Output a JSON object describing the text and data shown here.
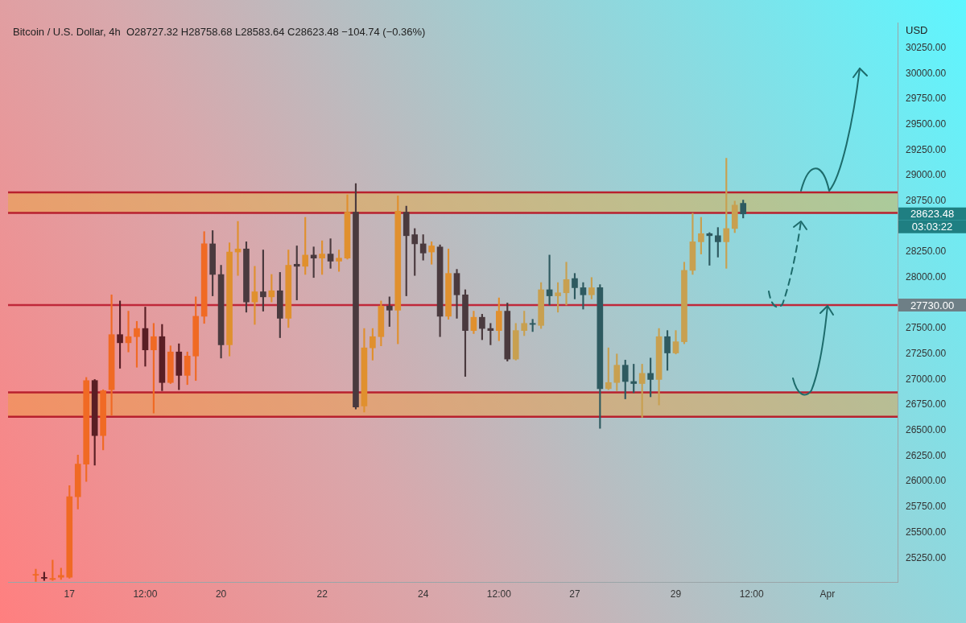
{
  "chart_data": {
    "type": "candlestick",
    "title": "Bitcoin / U.S. Dollar, 4h",
    "subtitle": "O28727.32 H28758.68 L28583.64 C28623.48 −104.74 (−0.36%)",
    "ylabel": "USD",
    "x": [
      "--03-16T08:00",
      "--03-16T12:00",
      "--03-16T16:00",
      "--03-16T20:00",
      "--03-17T00:00",
      "--03-17T04:00",
      "--03-17T08:00",
      "--03-17T12:00",
      "--03-17T16:00",
      "--03-17T20:00",
      "--03-18T00:00",
      "--03-18T04:00",
      "--03-18T08:00",
      "--03-18T12:00",
      "--03-18T16:00",
      "--03-18T20:00",
      "--03-19T00:00",
      "--03-19T04:00",
      "--03-19T08:00",
      "--03-19T12:00",
      "--03-19T16:00",
      "--03-19T20:00",
      "--03-20T00:00",
      "--03-20T04:00",
      "--03-20T08:00",
      "--03-20T12:00",
      "--03-20T16:00",
      "--03-20T20:00",
      "--03-21T00:00",
      "--03-21T04:00",
      "--03-21T08:00",
      "--03-21T12:00",
      "--03-21T16:00",
      "--03-21T20:00",
      "--03-22T00:00",
      "--03-22T04:00",
      "--03-22T08:00",
      "--03-22T12:00",
      "--03-22T16:00",
      "--03-22T20:00",
      "--03-23T00:00",
      "--03-23T04:00",
      "--03-23T08:00",
      "--03-23T12:00",
      "--03-23T16:00",
      "--03-23T20:00",
      "--03-24T00:00",
      "--03-24T04:00",
      "--03-24T08:00",
      "--03-24T12:00",
      "--03-24T16:00",
      "--03-24T20:00",
      "--03-25T00:00",
      "--03-25T04:00",
      "--03-25T08:00",
      "--03-25T12:00",
      "--03-25T16:00",
      "--03-25T20:00",
      "--03-26T00:00",
      "--03-26T04:00",
      "--03-26T08:00",
      "--03-26T12:00",
      "--03-26T16:00",
      "--03-26T20:00",
      "--03-27T00:00",
      "--03-27T04:00",
      "--03-27T08:00",
      "--03-27T12:00",
      "--03-27T16:00",
      "--03-27T20:00",
      "--03-28T00:00",
      "--03-28T04:00",
      "--03-28T08:00",
      "--03-28T12:00",
      "--03-28T16:00",
      "--03-28T20:00",
      "--03-29T00:00",
      "--03-29T04:00",
      "--03-29T08:00",
      "--03-29T12:00",
      "--03-29T16:00",
      "--03-29T20:00",
      "--03-30T00:00",
      "--03-30T04:00",
      "--03-30T08:00"
    ],
    "ohlc": [
      [
        25080,
        25140,
        25020,
        25090
      ],
      [
        25060,
        25110,
        25030,
        25050
      ],
      [
        25040,
        25230,
        25030,
        25050
      ],
      [
        25060,
        25150,
        25040,
        25080
      ],
      [
        25060,
        25960,
        25050,
        25850
      ],
      [
        25850,
        26260,
        25730,
        26170
      ],
      [
        26170,
        27020,
        26000,
        26990
      ],
      [
        26990,
        27000,
        26160,
        26450
      ],
      [
        26450,
        26900,
        26310,
        26890
      ],
      [
        26900,
        27830,
        26650,
        27440
      ],
      [
        27440,
        27770,
        27110,
        27360
      ],
      [
        27360,
        27670,
        27270,
        27420
      ],
      [
        27420,
        27570,
        27120,
        27500
      ],
      [
        27500,
        27710,
        27130,
        27290
      ],
      [
        27290,
        27550,
        26670,
        27420
      ],
      [
        27420,
        27540,
        26890,
        26970
      ],
      [
        26970,
        27330,
        26960,
        27270
      ],
      [
        27270,
        27350,
        26900,
        27040
      ],
      [
        27040,
        27270,
        26950,
        27230
      ],
      [
        27230,
        27810,
        26990,
        27620
      ],
      [
        27620,
        28450,
        27550,
        28330
      ],
      [
        28330,
        28460,
        27820,
        28030
      ],
      [
        28030,
        28120,
        27210,
        27340
      ],
      [
        27340,
        28340,
        27230,
        28250
      ],
      [
        28250,
        28550,
        28020,
        28280
      ],
      [
        28280,
        28350,
        27660,
        27760
      ],
      [
        27760,
        28110,
        27540,
        27860
      ],
      [
        27860,
        28270,
        27670,
        27810
      ],
      [
        27810,
        28030,
        27760,
        27870
      ],
      [
        27870,
        28050,
        27410,
        27600
      ],
      [
        27600,
        28270,
        27510,
        28120
      ],
      [
        28130,
        28310,
        27780,
        28110
      ],
      [
        28110,
        28590,
        28030,
        28220
      ],
      [
        28220,
        28300,
        28000,
        28190
      ],
      [
        28190,
        28360,
        28030,
        28230
      ],
      [
        28230,
        28380,
        28090,
        28160
      ],
      [
        28160,
        28270,
        28060,
        28190
      ],
      [
        28190,
        28810,
        28180,
        28640
      ],
      [
        28640,
        28920,
        26710,
        26730
      ],
      [
        26740,
        27500,
        26680,
        27310
      ],
      [
        27310,
        27500,
        27190,
        27420
      ],
      [
        27420,
        27770,
        27330,
        27720
      ],
      [
        27720,
        27810,
        27520,
        27680
      ],
      [
        27680,
        28800,
        27350,
        28650
      ],
      [
        28640,
        28700,
        27820,
        28410
      ],
      [
        28420,
        28480,
        28020,
        28330
      ],
      [
        28330,
        28420,
        28170,
        28240
      ],
      [
        28250,
        28350,
        28130,
        28310
      ],
      [
        28300,
        28320,
        27420,
        27620
      ],
      [
        27620,
        28280,
        27590,
        28040
      ],
      [
        28040,
        28080,
        27600,
        27830
      ],
      [
        27830,
        27880,
        27030,
        27480
      ],
      [
        27480,
        27670,
        27450,
        27610
      ],
      [
        27610,
        27640,
        27390,
        27500
      ],
      [
        27500,
        27550,
        27340,
        27480
      ],
      [
        27480,
        27800,
        27380,
        27670
      ],
      [
        27670,
        27750,
        27180,
        27200
      ],
      [
        27200,
        27550,
        27190,
        27480
      ],
      [
        27480,
        27670,
        27430,
        27550
      ],
      [
        27550,
        27590,
        27470,
        27540
      ],
      [
        27530,
        27950,
        27500,
        27880
      ],
      [
        27880,
        28220,
        27730,
        27820
      ],
      [
        27820,
        27950,
        27660,
        27850
      ],
      [
        27850,
        28150,
        27730,
        27980
      ],
      [
        27990,
        28040,
        27790,
        27900
      ],
      [
        27900,
        27950,
        27690,
        27830
      ],
      [
        27830,
        28000,
        27790,
        27900
      ],
      [
        27900,
        27930,
        26520,
        26910
      ],
      [
        26910,
        27310,
        26900,
        26970
      ],
      [
        26970,
        27250,
        26890,
        27140
      ],
      [
        27140,
        27190,
        26810,
        26980
      ],
      [
        26980,
        27150,
        26870,
        26960
      ],
      [
        26960,
        27150,
        26630,
        27060
      ],
      [
        27060,
        27210,
        26830,
        27000
      ],
      [
        27000,
        27500,
        26750,
        27420
      ],
      [
        27420,
        27480,
        27090,
        27260
      ],
      [
        27260,
        27480,
        27250,
        27370
      ],
      [
        27370,
        28150,
        27350,
        28070
      ],
      [
        28070,
        28630,
        28030,
        28350
      ],
      [
        28350,
        28590,
        28230,
        28430
      ],
      [
        28430,
        28440,
        28120,
        28410
      ],
      [
        28410,
        28490,
        28200,
        28350
      ],
      [
        28350,
        29170,
        28090,
        28480
      ],
      [
        28480,
        28750,
        28440,
        28710
      ],
      [
        28727.32,
        28758.68,
        28583.64,
        28623.48
      ]
    ],
    "colors": [
      "#f06a24",
      "#5a1e24",
      "#f06a24",
      "#f06a24",
      "#f06a24",
      "#f06a24",
      "#f06a24",
      "#5a1e24",
      "#f06a24",
      "#f06a24",
      "#5a1e24",
      "#f06a24",
      "#f06a24",
      "#5a1e24",
      "#f06a24",
      "#5a1e24",
      "#f06a24",
      "#5a1e24",
      "#f06a24",
      "#f06a24",
      "#f06a24",
      "#4a3a3e",
      "#4a3a3e",
      "#e0902e",
      "#e0902e",
      "#4a3a3e",
      "#e0902e",
      "#4a3a3e",
      "#e0902e",
      "#4a3a3e",
      "#e0902e",
      "#4a3a3e",
      "#e0902e",
      "#4a3a3e",
      "#e0902e",
      "#4a3a3e",
      "#e0902e",
      "#e0902e",
      "#4a3a3e",
      "#e0902e",
      "#e0902e",
      "#e0902e",
      "#4a3a3e",
      "#e0902e",
      "#4a3a3e",
      "#4a3a3e",
      "#4a3a3e",
      "#e0902e",
      "#4a3a3e",
      "#e0902e",
      "#4a3a3e",
      "#4a3a3e",
      "#e0902e",
      "#4a3a3e",
      "#4a3a3e",
      "#e0902e",
      "#4a3a3e",
      "#c8a050",
      "#c8a050",
      "#2e5a60",
      "#c8a050",
      "#2e5a60",
      "#c8a050",
      "#c8a050",
      "#2e5a60",
      "#2e5a60",
      "#c8a050",
      "#2e5a60",
      "#c8a050",
      "#c8a050",
      "#2e5a60",
      "#2e5a60",
      "#c8a050",
      "#2e5a60",
      "#c8a050",
      "#2e5a60",
      "#c8a050",
      "#c8a050",
      "#c8a050",
      "#c8a050",
      "#2e5a60",
      "#2e5a60",
      "#c8a050",
      "#c8a050",
      "#2e5a60"
    ],
    "xlim": [
      "--03-15T18:50",
      "--04-02T09:20"
    ],
    "xticks": [
      {
        "value": "--03-17T00:00",
        "label": "17"
      },
      {
        "value": "--03-18T12:00",
        "label": "12:00"
      },
      {
        "value": "--03-20T00:00",
        "label": "20"
      },
      {
        "value": "--03-22T00:00",
        "label": "22"
      },
      {
        "value": "--03-24T00:00",
        "label": "24"
      },
      {
        "value": "--03-25T12:00",
        "label": "12:00"
      },
      {
        "value": "--03-27T00:00",
        "label": "27"
      },
      {
        "value": "--03-29T00:00",
        "label": "29"
      },
      {
        "value": "--03-30T12:00",
        "label": "12:00"
      },
      {
        "value": "--04-01T00:00",
        "label": "Apr"
      }
    ],
    "ylim": [
      25010,
      30500
    ],
    "yticks": [
      {
        "value": 25250,
        "label": "25250.00"
      },
      {
        "value": 25500,
        "label": "25500.00"
      },
      {
        "value": 25750,
        "label": "25750.00"
      },
      {
        "value": 26000,
        "label": "26000.00"
      },
      {
        "value": 26250,
        "label": "26250.00"
      },
      {
        "value": 26500,
        "label": "26500.00"
      },
      {
        "value": 26750,
        "label": "26750.00"
      },
      {
        "value": 27000,
        "label": "27000.00"
      },
      {
        "value": 27250,
        "label": "27250.00"
      },
      {
        "value": 27500,
        "label": "27500.00"
      },
      {
        "value": 28000,
        "label": "28000.00"
      },
      {
        "value": 28250,
        "label": "28250.00"
      },
      {
        "value": 28750,
        "label": "28750.00"
      },
      {
        "value": 29000,
        "label": "29000.00"
      },
      {
        "value": 29250,
        "label": "29250.00"
      },
      {
        "value": 29500,
        "label": "29500.00"
      },
      {
        "value": 29750,
        "label": "29750.00"
      },
      {
        "value": 30000,
        "label": "30000.00"
      },
      {
        "value": 30250,
        "label": "30250.00"
      }
    ],
    "ref_lines": [
      {
        "axis": "y",
        "value": 27730,
        "label": "27730.00",
        "color": "#c0283a"
      },
      {
        "axis": "y",
        "value": 28634,
        "color": "#b8202e"
      },
      {
        "axis": "y",
        "value": 28834,
        "color": "#b8202e"
      },
      {
        "axis": "y",
        "value": 26634,
        "color": "#b8202e"
      },
      {
        "axis": "y",
        "value": 26874,
        "color": "#b8202e"
      }
    ],
    "bands": [
      {
        "axis": "y",
        "from": 28634,
        "to": 28834,
        "color": "#e8a838"
      },
      {
        "axis": "y",
        "from": 26634,
        "to": 26874,
        "color": "#f09838"
      }
    ],
    "annotations": [
      "28623.48",
      "03:03:22"
    ]
  }
}
